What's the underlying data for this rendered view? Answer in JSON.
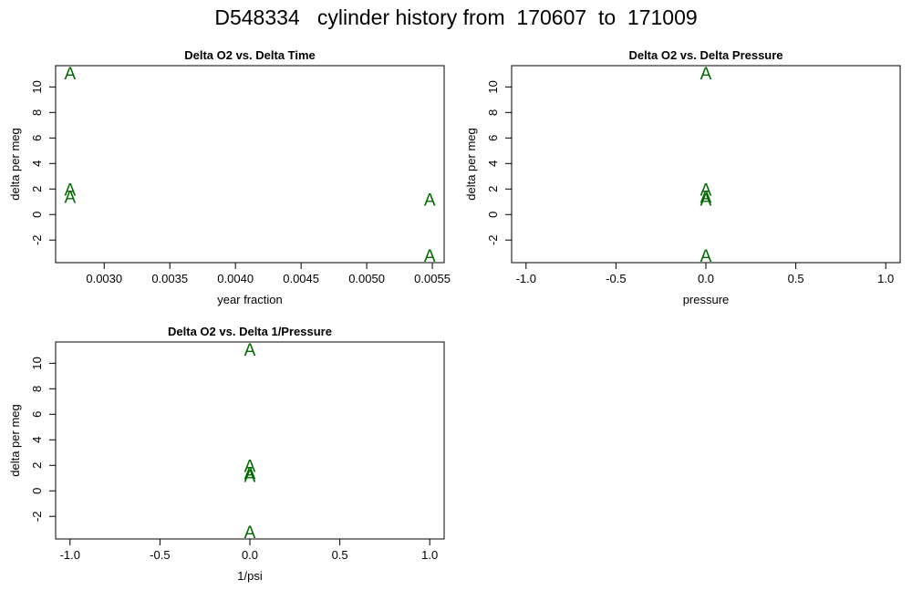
{
  "title": "D548334   cylinder history from  170607  to  171009",
  "chart_data": [
    {
      "type": "scatter",
      "title": "Delta O2 vs. Delta Time",
      "xlabel": "year fraction",
      "ylabel": "delta per meg",
      "marker": "A",
      "color": "#006a00",
      "x": [
        0.00274,
        0.00274,
        0.00274,
        0.00548,
        0.00548
      ],
      "values": [
        11.1,
        2.0,
        1.4,
        1.2,
        -3.2
      ],
      "xlim": [
        0.00263,
        0.00559
      ],
      "xticks": [
        {
          "value": 0.003,
          "label": "0.0030"
        },
        {
          "value": 0.0035,
          "label": "0.0035"
        },
        {
          "value": 0.004,
          "label": "0.0040"
        },
        {
          "value": 0.0045,
          "label": "0.0045"
        },
        {
          "value": 0.005,
          "label": "0.0050"
        },
        {
          "value": 0.0055,
          "label": "0.0055"
        }
      ],
      "ylim": [
        -3.77,
        11.67
      ],
      "yticks": [
        -2,
        0,
        2,
        4,
        6,
        8,
        10
      ]
    },
    {
      "type": "scatter",
      "title": "Delta O2 vs. Delta Pressure",
      "xlabel": "pressure",
      "ylabel": "delta per meg",
      "marker": "A",
      "color": "#006a00",
      "x": [
        0,
        0,
        0,
        0,
        0
      ],
      "values": [
        11.1,
        2.0,
        1.4,
        1.2,
        -3.2
      ],
      "xlim": [
        -1.08,
        1.08
      ],
      "xticks": [
        {
          "value": -1,
          "label": "-1.0"
        },
        {
          "value": -0.5,
          "label": "-0.5"
        },
        {
          "value": 0,
          "label": "0.0"
        },
        {
          "value": 0.5,
          "label": "0.5"
        },
        {
          "value": 1,
          "label": "1.0"
        }
      ],
      "ylim": [
        -3.77,
        11.67
      ],
      "yticks": [
        -2,
        0,
        2,
        4,
        6,
        8,
        10
      ]
    },
    {
      "type": "scatter",
      "title": "Delta O2 vs. Delta 1/Pressure",
      "xlabel": "1/psi",
      "ylabel": "delta per meg",
      "marker": "A",
      "color": "#006a00",
      "x": [
        0,
        0,
        0,
        0,
        0
      ],
      "values": [
        11.1,
        2.0,
        1.4,
        1.2,
        -3.2
      ],
      "xlim": [
        -1.08,
        1.08
      ],
      "xticks": [
        {
          "value": -1,
          "label": "-1.0"
        },
        {
          "value": -0.5,
          "label": "-0.5"
        },
        {
          "value": 0,
          "label": "0.0"
        },
        {
          "value": 0.5,
          "label": "0.5"
        },
        {
          "value": 1,
          "label": "1.0"
        }
      ],
      "ylim": [
        -3.77,
        11.67
      ],
      "yticks": [
        -2,
        0,
        2,
        4,
        6,
        8,
        10
      ]
    }
  ]
}
